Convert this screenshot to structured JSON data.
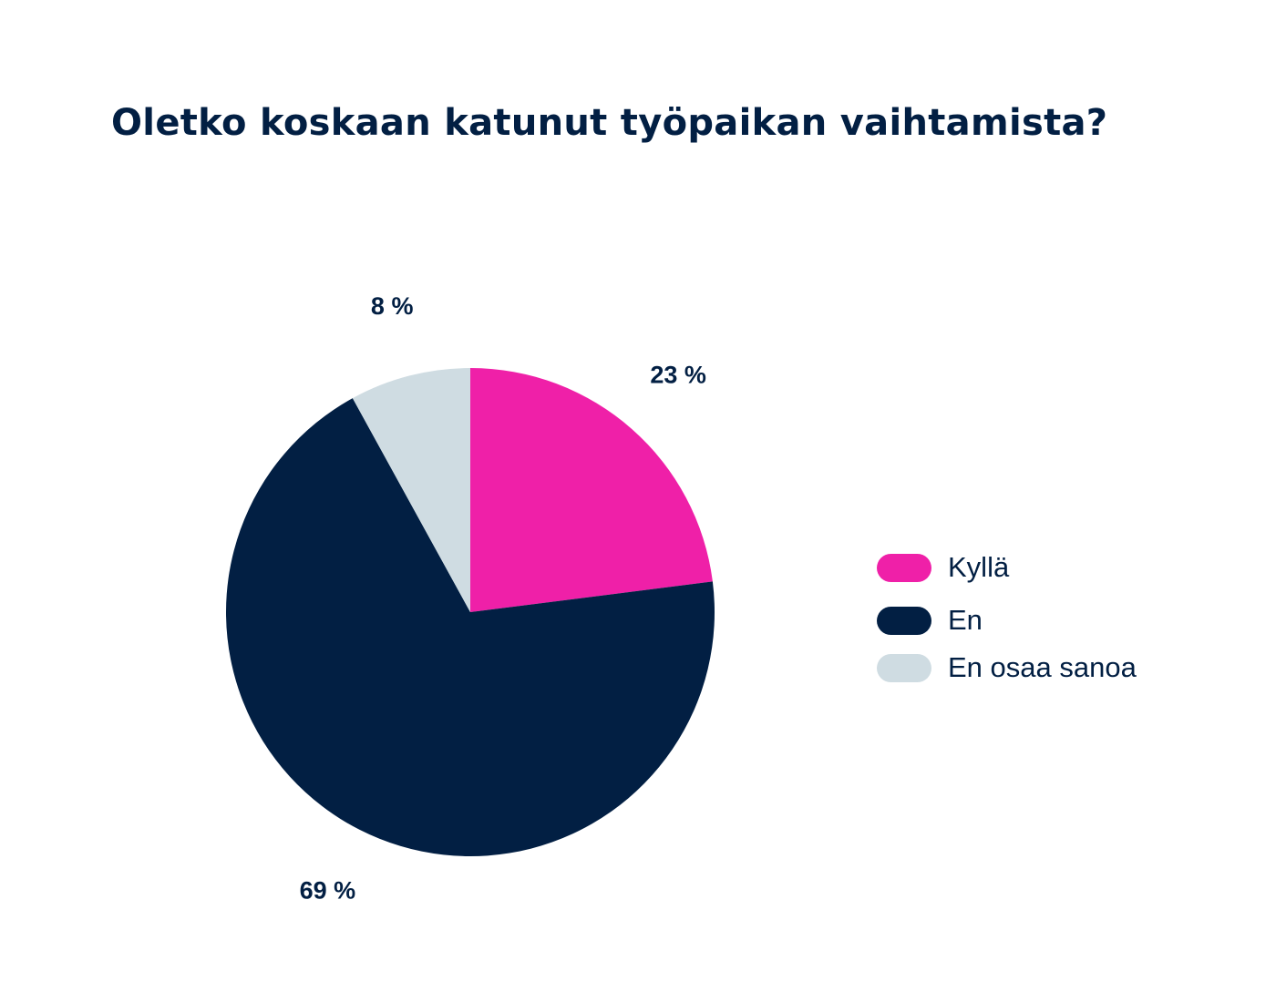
{
  "chart_data": {
    "type": "pie",
    "title": "Oletko koskaan katunut työpaikan vaihtamista?",
    "start_angle_deg": 0,
    "direction": "clockwise",
    "legend_position": "right",
    "slices": [
      {
        "label": "Kyllä",
        "value": 23,
        "value_label": "23 %",
        "color": "#ef20a8"
      },
      {
        "label": "En",
        "value": 69,
        "value_label": "69 %",
        "color": "#021f43"
      },
      {
        "label": "En osaa sanoa",
        "value": 8,
        "value_label": "8 %",
        "color": "#cfdce2"
      }
    ]
  }
}
